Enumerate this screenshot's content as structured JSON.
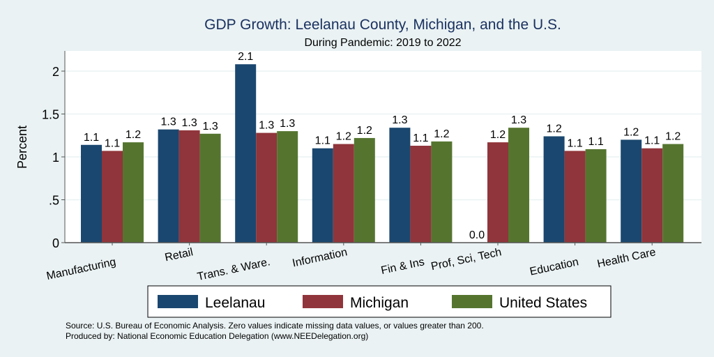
{
  "chart_data": {
    "type": "bar",
    "title": "GDP Growth: Leelanau County, Michigan, and the U.S.",
    "subtitle": "During Pandemic: 2019 to 2022",
    "xlabel": "",
    "ylabel": "Percent",
    "ylim": [
      0,
      2.2
    ],
    "yticks": [
      0,
      0.5,
      1,
      1.5,
      2
    ],
    "ytick_labels": [
      "0",
      ".5",
      "1",
      "1.5",
      "2"
    ],
    "grid": true,
    "legend_position": "bottom",
    "categories": [
      "Manufacturing",
      "Retail",
      "Trans. & Ware.",
      "Information",
      "Fin & Ins",
      "Prof, Sci, Tech",
      "Education",
      "Health Care"
    ],
    "series": [
      {
        "name": "Leelanau",
        "color": "#1a476f",
        "values": [
          1.14,
          1.32,
          2.08,
          1.1,
          1.34,
          0.0,
          1.24,
          1.2
        ],
        "labels": [
          "1.1",
          "1.3",
          "2.1",
          "1.1",
          "1.3",
          "0.0",
          "1.2",
          "1.2"
        ]
      },
      {
        "name": "Michigan",
        "color": "#90353b",
        "values": [
          1.07,
          1.31,
          1.28,
          1.15,
          1.13,
          1.17,
          1.07,
          1.1
        ],
        "labels": [
          "1.1",
          "1.3",
          "1.3",
          "1.2",
          "1.1",
          "1.2",
          "1.1",
          "1.1"
        ]
      },
      {
        "name": "United States",
        "color": "#55752f",
        "values": [
          1.17,
          1.27,
          1.3,
          1.22,
          1.18,
          1.34,
          1.09,
          1.15
        ],
        "labels": [
          "1.2",
          "1.3",
          "1.3",
          "1.2",
          "1.2",
          "1.3",
          "1.1",
          "1.2"
        ]
      }
    ],
    "notes": [
      "Source: U.S. Bureau of Economic Analysis. Zero values indicate missing data values, or values greater than 200.",
      "Produced by: National Economic Education Delegation (www.NEEDelegation.org)"
    ]
  }
}
